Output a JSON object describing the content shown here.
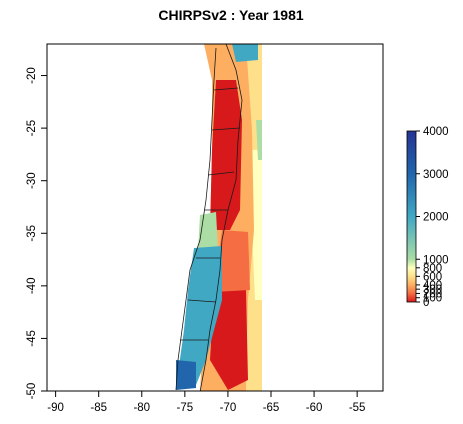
{
  "title": "CHIRPSv2 : Year 1981",
  "x_axis": {
    "ticks": [
      "-90",
      "-85",
      "-80",
      "-75",
      "-70",
      "-65",
      "-60",
      "-55"
    ],
    "tick_values": [
      -90,
      -85,
      -80,
      -75,
      -70,
      -65,
      -60,
      -55
    ],
    "range": [
      -91,
      -52
    ]
  },
  "y_axis": {
    "ticks": [
      "-20",
      "-25",
      "-30",
      "-35",
      "-40",
      "-45",
      "-50"
    ],
    "tick_values": [
      -20,
      -25,
      -30,
      -35,
      -40,
      -45,
      -50
    ],
    "range": [
      -50,
      -17
    ]
  },
  "legend": {
    "labels": [
      "4000",
      "3000",
      "2000",
      "1000",
      "800",
      "600",
      "400",
      "300",
      "200",
      "100",
      "0"
    ],
    "values": [
      4000,
      3000,
      2000,
      1000,
      800,
      600,
      400,
      300,
      200,
      100,
      0
    ],
    "colors": {
      "0": "#d7191c",
      "200": "#f46d43",
      "400": "#fdae61",
      "600": "#fee08b",
      "800": "#ffffbf",
      "1000": "#abdda4",
      "2000": "#41a8c4",
      "3000": "#2166ac",
      "4000": "#253494"
    }
  },
  "colors": {
    "frame": "#000000",
    "borders": "#1a1a1a",
    "background": "#ffffff"
  }
}
